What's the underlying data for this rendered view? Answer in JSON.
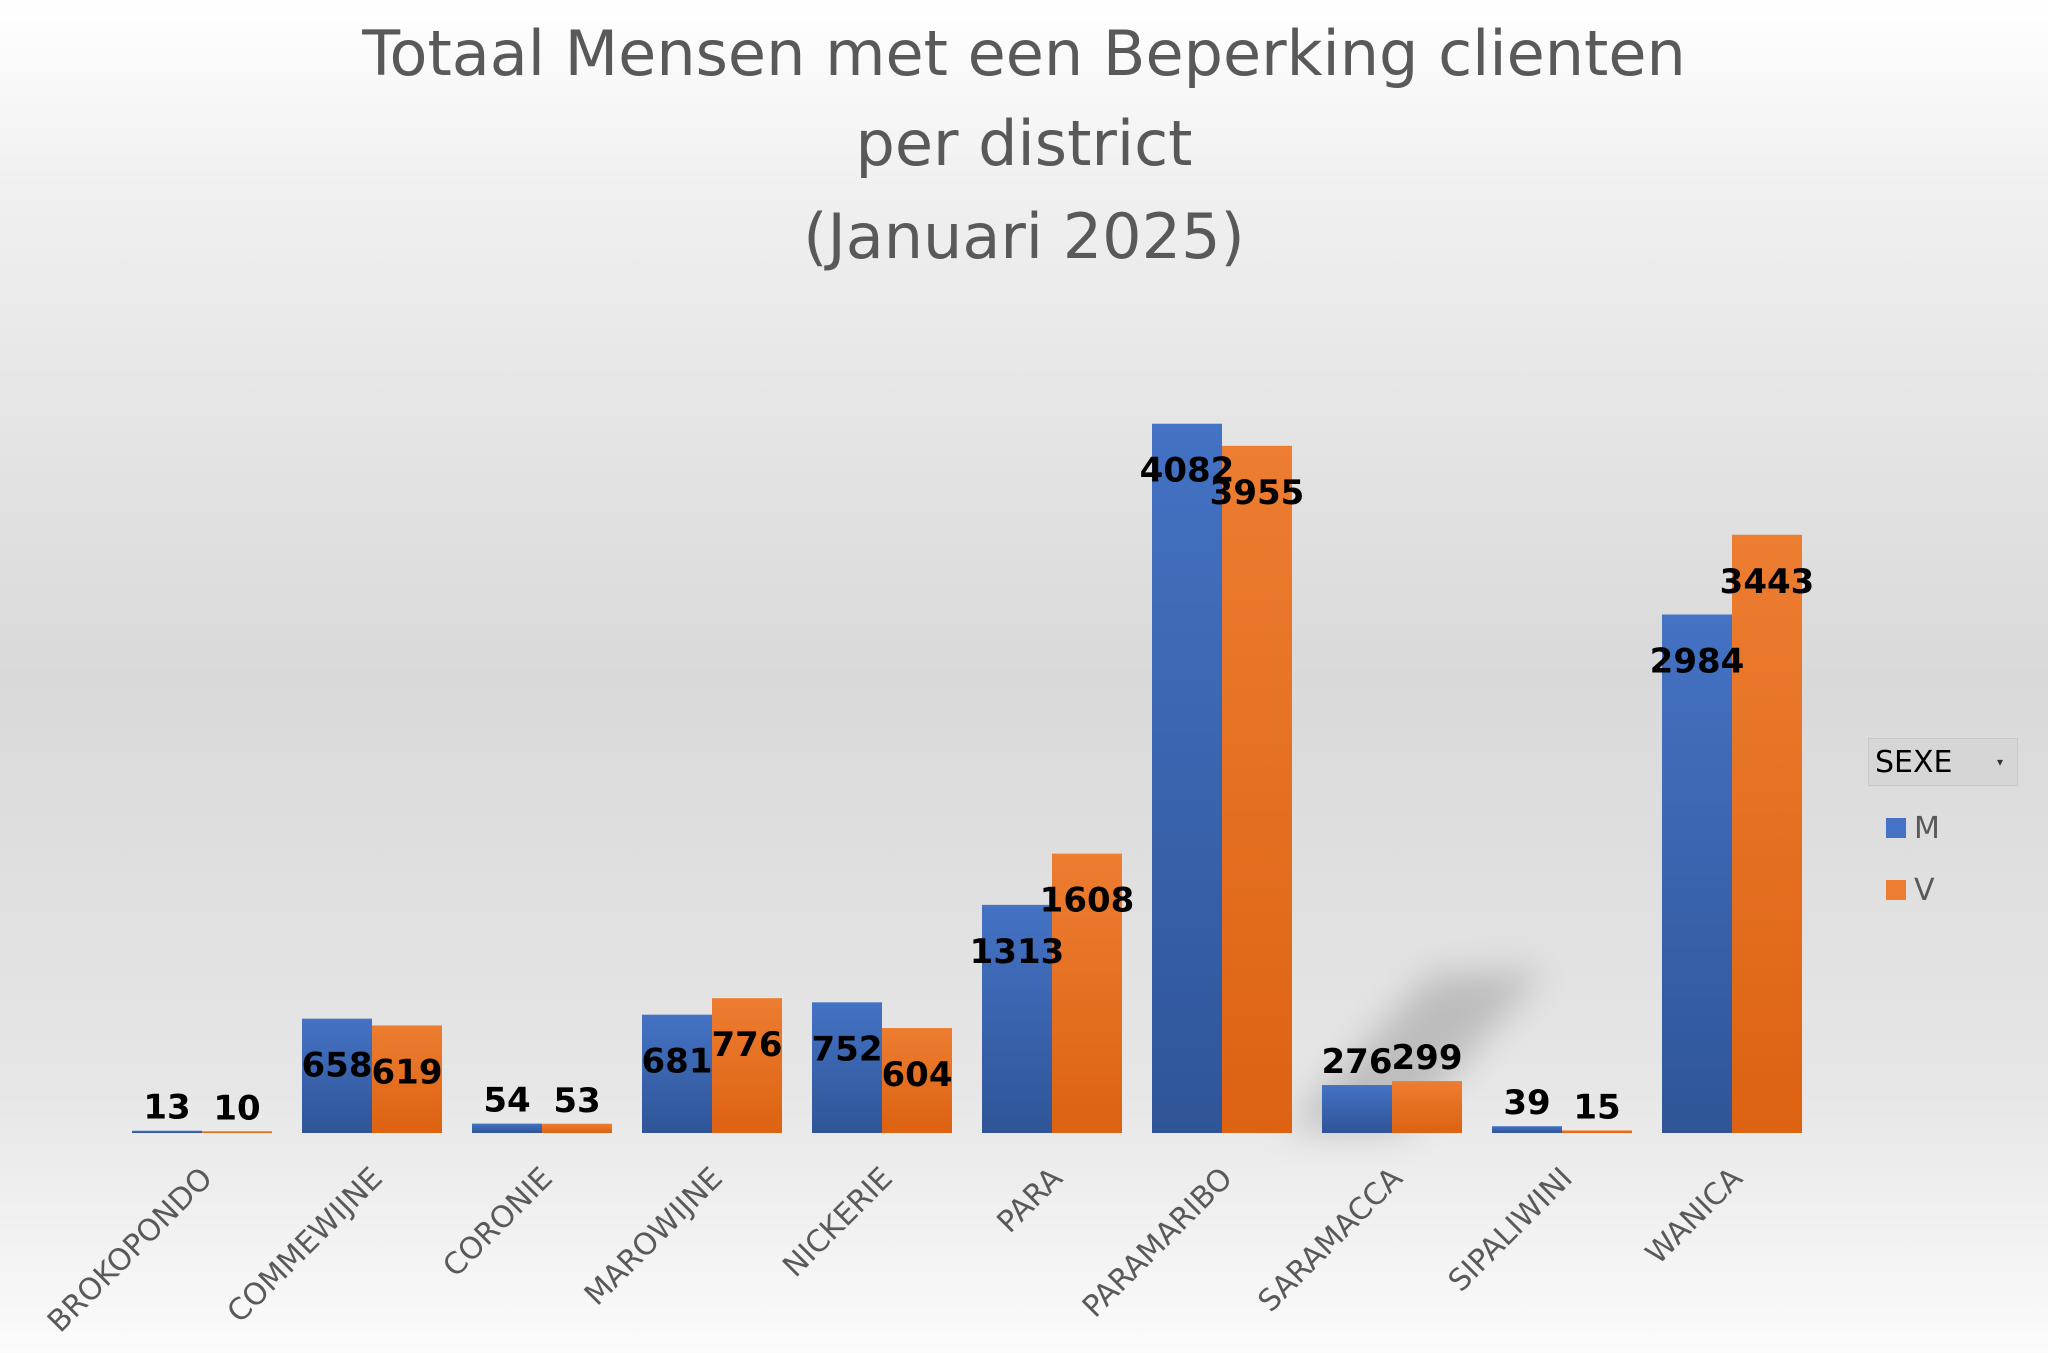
{
  "chart_data": {
    "type": "bar",
    "title_lines": [
      "Totaal Mensen met een Beperking clienten",
      "per district",
      "(Januari 2025)"
    ],
    "categories": [
      "BROKOPONDO",
      "COMMEWIJNE",
      "CORONIE",
      "MAROWIJNE",
      "NICKERIE",
      "PARA",
      "PARAMARIBO",
      "SARAMACCA",
      "SIPALIWINI",
      "WANICA"
    ],
    "series": [
      {
        "name": "M",
        "values": [
          13,
          658,
          54,
          681,
          752,
          1313,
          4082,
          276,
          39,
          2984
        ],
        "color": "#4472c4"
      },
      {
        "name": "V",
        "values": [
          10,
          619,
          53,
          776,
          604,
          1608,
          3955,
          299,
          15,
          3443
        ],
        "color": "#ed7d31"
      }
    ],
    "xlabel": "",
    "ylabel": "",
    "ylim": [
      0,
      4500
    ],
    "grid": false,
    "data_labels": true,
    "legend": {
      "title": "SEXE",
      "position": "right"
    }
  }
}
